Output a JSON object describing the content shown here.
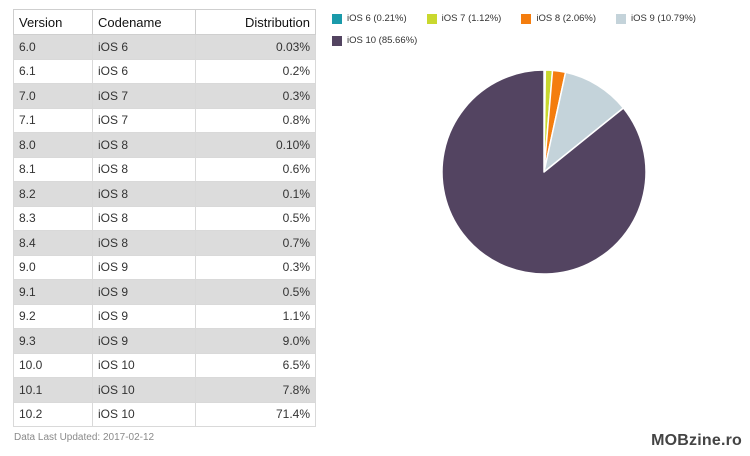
{
  "table": {
    "headers": [
      "Version",
      "Codename",
      "Distribution"
    ],
    "rows": [
      [
        "6.0",
        "iOS 6",
        "0.03%"
      ],
      [
        "6.1",
        "iOS 6",
        "0.2%"
      ],
      [
        "7.0",
        "iOS 7",
        "0.3%"
      ],
      [
        "7.1",
        "iOS 7",
        "0.8%"
      ],
      [
        "8.0",
        "iOS 8",
        "0.10%"
      ],
      [
        "8.1",
        "iOS 8",
        "0.6%"
      ],
      [
        "8.2",
        "iOS 8",
        "0.1%"
      ],
      [
        "8.3",
        "iOS 8",
        "0.5%"
      ],
      [
        "8.4",
        "iOS 8",
        "0.7%"
      ],
      [
        "9.0",
        "iOS 9",
        "0.3%"
      ],
      [
        "9.1",
        "iOS 9",
        "0.5%"
      ],
      [
        "9.2",
        "iOS 9",
        "1.1%"
      ],
      [
        "9.3",
        "iOS 9",
        "9.0%"
      ],
      [
        "10.0",
        "iOS 10",
        "6.5%"
      ],
      [
        "10.1",
        "iOS 10",
        "7.8%"
      ],
      [
        "10.2",
        "iOS 10",
        "71.4%"
      ]
    ]
  },
  "footer": {
    "updated": "Data Last Updated: 2017-02-12"
  },
  "watermark": "MOBzine.ro",
  "chart_data": {
    "type": "pie",
    "legend_position": "top",
    "slices": [
      {
        "name": "iOS 6",
        "value": 0.21,
        "label": "iOS 6 (0.21%)",
        "color": "#1a9aaa"
      },
      {
        "name": "iOS 7",
        "value": 1.12,
        "label": "iOS 7 (1.12%)",
        "color": "#c9d82e"
      },
      {
        "name": "iOS 8",
        "value": 2.06,
        "label": "iOS 8 (2.06%)",
        "color": "#f47d0e"
      },
      {
        "name": "iOS 9",
        "value": 10.79,
        "label": "iOS 9 (10.79%)",
        "color": "#c4d3da"
      },
      {
        "name": "iOS 10",
        "value": 85.66,
        "label": "iOS 10 (85.66%)",
        "color": "#534461"
      }
    ]
  }
}
